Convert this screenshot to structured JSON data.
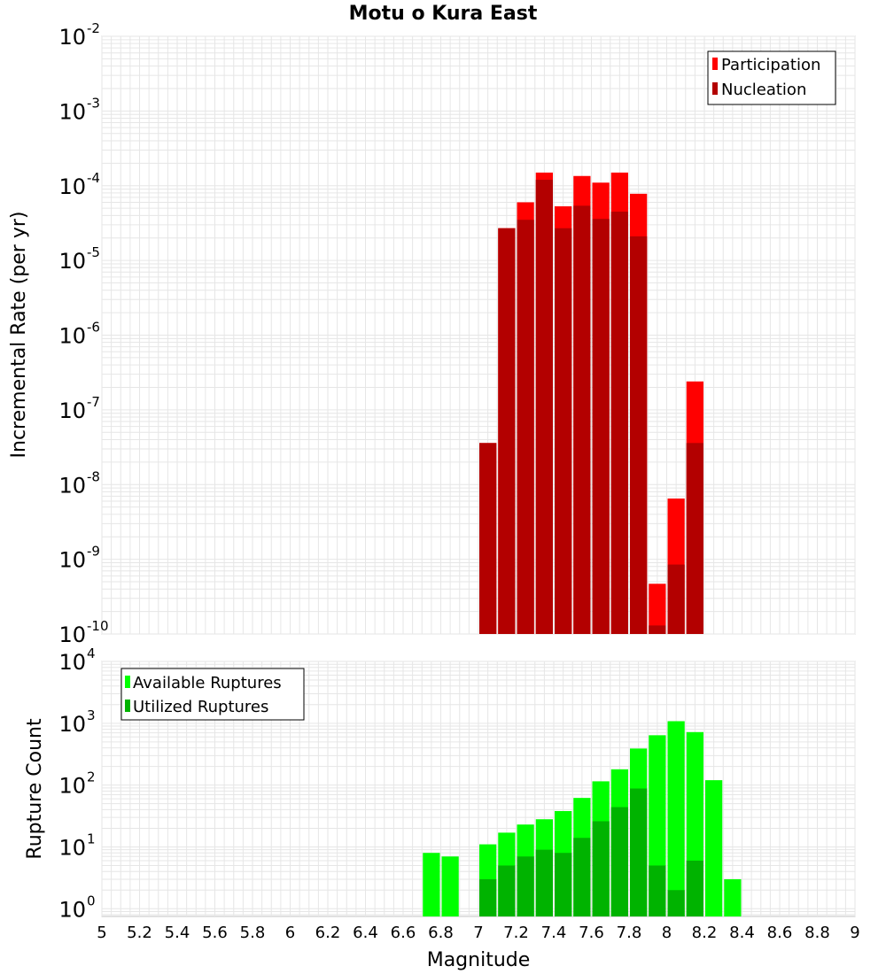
{
  "chart_data": [
    {
      "type": "bar",
      "title": "Motu o Kura East",
      "xlabel": "",
      "ylabel": "Incremental Rate (per yr)",
      "yscale": "log",
      "ylim": [
        1e-10,
        0.01
      ],
      "xlim": [
        5,
        9
      ],
      "bin_width": 0.1,
      "legend_position": "top-right",
      "grid": true,
      "y_tick_exponents": [
        "-10",
        "-9",
        "-8",
        "-7",
        "-6",
        "-5",
        "-4",
        "-3",
        "-2"
      ],
      "series": [
        {
          "name": "Participation",
          "color": "#ff0000",
          "x": [
            7.05,
            7.15,
            7.25,
            7.35,
            7.45,
            7.55,
            7.65,
            7.75,
            7.85,
            7.95,
            8.05,
            8.15
          ],
          "values": [
            3.6e-08,
            2.7e-05,
            6e-05,
            0.00015,
            5.3e-05,
            0.000135,
            0.00011,
            0.00015,
            7.8e-05,
            4.7e-10,
            6.5e-09,
            2.4e-07
          ]
        },
        {
          "name": "Nucleation",
          "color": "#b30000",
          "x": [
            7.05,
            7.15,
            7.25,
            7.35,
            7.45,
            7.55,
            7.65,
            7.75,
            7.85,
            7.95,
            8.05,
            8.15
          ],
          "values": [
            3.6e-08,
            2.7e-05,
            3.5e-05,
            0.00012,
            2.7e-05,
            5.4e-05,
            3.6e-05,
            4.5e-05,
            2.1e-05,
            1.3e-10,
            8.5e-10,
            3.6e-08
          ]
        }
      ]
    },
    {
      "type": "bar",
      "title": "",
      "xlabel": "Magnitude",
      "ylabel": "Rupture Count",
      "yscale": "log",
      "ylim": [
        0.75,
        10000
      ],
      "xlim": [
        5,
        9
      ],
      "bin_width": 0.1,
      "legend_position": "top-left",
      "grid": true,
      "y_tick_exponents": [
        "0",
        "1",
        "2",
        "3",
        "4"
      ],
      "x_tick_labels": [
        "5",
        "5.2",
        "5.4",
        "5.6",
        "5.8",
        "6",
        "6.2",
        "6.4",
        "6.6",
        "6.8",
        "7",
        "7.2",
        "7.4",
        "7.6",
        "7.8",
        "8",
        "8.2",
        "8.4",
        "8.6",
        "8.8",
        "9"
      ],
      "series": [
        {
          "name": "Available Ruptures",
          "color": "#00ff00",
          "x": [
            6.75,
            6.85,
            7.05,
            7.15,
            7.25,
            7.35,
            7.45,
            7.55,
            7.65,
            7.75,
            7.85,
            7.95,
            8.05,
            8.15,
            8.25,
            8.35
          ],
          "values": [
            8,
            7,
            11,
            17,
            23,
            28,
            38,
            62,
            115,
            180,
            390,
            640,
            1080,
            720,
            120,
            3
          ]
        },
        {
          "name": "Utilized Ruptures",
          "color": "#00b300",
          "x": [
            7.05,
            7.15,
            7.25,
            7.35,
            7.45,
            7.55,
            7.65,
            7.75,
            7.85,
            7.95,
            8.05,
            8.15
          ],
          "values": [
            3,
            5,
            7,
            9,
            8,
            14,
            26,
            44,
            88,
            5,
            2,
            6
          ]
        }
      ]
    }
  ]
}
